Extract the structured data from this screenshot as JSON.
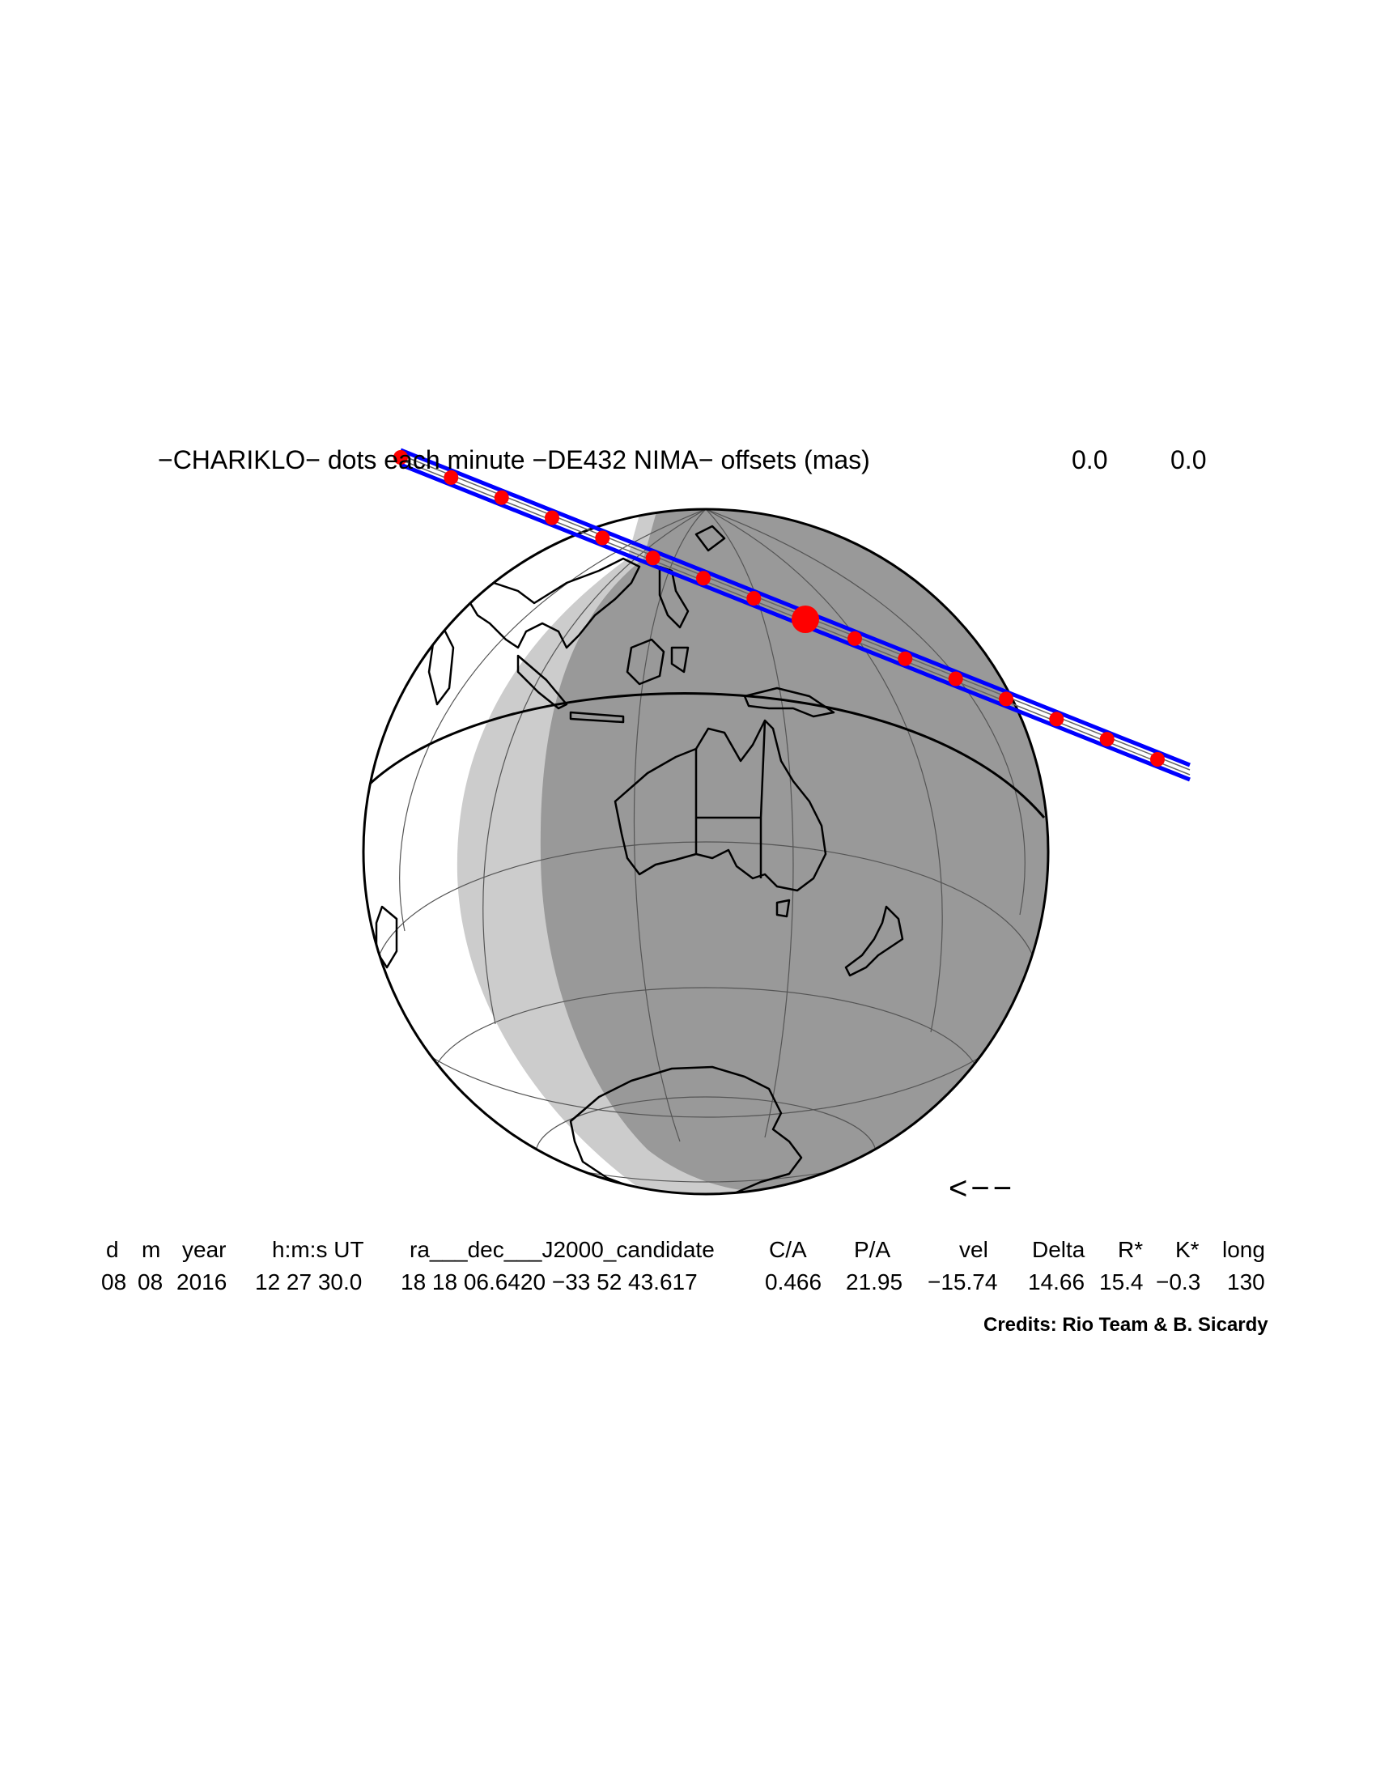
{
  "header": {
    "title": "−CHARIKLO− dots each minute −DE432 NIMA− offsets (mas)",
    "offset_ra": "0.0",
    "offset_dec": "0.0"
  },
  "map": {
    "path_color": "#0000ff",
    "dot_color": "#ff0000",
    "night_color": "#999999",
    "twilight_color": "#cccccc",
    "day_color": "#ffffff",
    "direction_arrow": "<−−"
  },
  "table": {
    "headers": [
      "d",
      "m",
      "year",
      "h:m:s UT",
      "ra___dec___J2000_candidate",
      "C/A",
      "P/A",
      "vel",
      "Delta",
      "R*",
      "K*",
      "long"
    ],
    "values": [
      "08",
      "08",
      "2016",
      "12 27 30.0",
      "18 18 06.6420 −33 52 43.617",
      "0.466",
      "21.95",
      "−15.74",
      "14.66",
      "15.4",
      "−0.3",
      "130"
    ]
  },
  "credits": "Credits: Rio Team & B. Sicardy"
}
